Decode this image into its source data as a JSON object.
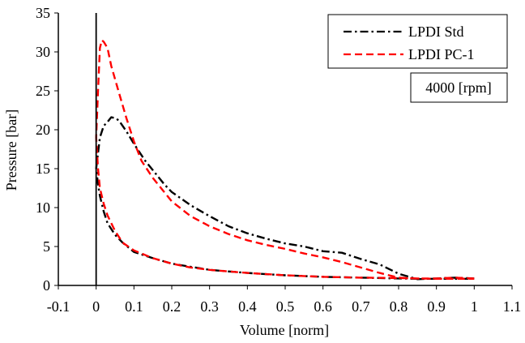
{
  "chart_data": {
    "type": "line",
    "title": "",
    "xlabel": "Volume [norm]",
    "ylabel": "Pressure [bar]",
    "xlim": [
      -0.1,
      1.1
    ],
    "ylim": [
      0,
      35
    ],
    "xticks": [
      -0.1,
      0,
      0.1,
      0.2,
      0.3,
      0.4,
      0.5,
      0.6,
      0.7,
      0.8,
      0.9,
      1,
      1.1
    ],
    "xtick_labels": [
      "-0.1",
      "0",
      "0.1",
      "0.2",
      "0.3",
      "0.4",
      "0.5",
      "0.6",
      "0.7",
      "0.8",
      "0.9",
      "1",
      "1.1"
    ],
    "yticks": [
      0,
      5,
      10,
      15,
      20,
      25,
      30,
      35
    ],
    "ytick_labels": [
      "0",
      "5",
      "10",
      "15",
      "20",
      "25",
      "30",
      "35"
    ],
    "grid": false,
    "legend_position": "top-right",
    "annotation": "4000 [rpm]",
    "series": [
      {
        "name": "LPDI Std",
        "color": "#000000",
        "dash": "dash-dot",
        "x": [
          1.0,
          0.95,
          0.9,
          0.85,
          0.8,
          0.75,
          0.7,
          0.65,
          0.6,
          0.55,
          0.5,
          0.45,
          0.4,
          0.35,
          0.3,
          0.25,
          0.2,
          0.18,
          0.15,
          0.13,
          0.1,
          0.08,
          0.06,
          0.05,
          0.04,
          0.03,
          0.02,
          0.01,
          0.005,
          0.0,
          0.005,
          0.01,
          0.02,
          0.03,
          0.05,
          0.07,
          0.1,
          0.15,
          0.2,
          0.25,
          0.3,
          0.4,
          0.5,
          0.6,
          0.7,
          0.8,
          0.85,
          0.9,
          1.0
        ],
        "y": [
          0.9,
          1.0,
          0.9,
          0.8,
          1.5,
          2.7,
          3.4,
          4.2,
          4.4,
          5.0,
          5.4,
          6.0,
          6.7,
          7.6,
          8.9,
          10.3,
          12.0,
          13.0,
          14.8,
          16.0,
          18.2,
          19.8,
          21.2,
          21.5,
          21.6,
          21.0,
          20.5,
          19.0,
          17.0,
          15.0,
          13.0,
          11.5,
          9.5,
          8.0,
          6.5,
          5.5,
          4.3,
          3.5,
          2.8,
          2.4,
          2.0,
          1.6,
          1.3,
          1.1,
          1.0,
          0.9,
          0.85,
          0.85,
          0.85
        ]
      },
      {
        "name": "LPDI PC-1",
        "color": "#ff0000",
        "dash": "dashed",
        "x": [
          1.0,
          0.95,
          0.9,
          0.85,
          0.8,
          0.75,
          0.7,
          0.65,
          0.6,
          0.55,
          0.5,
          0.45,
          0.4,
          0.35,
          0.3,
          0.25,
          0.2,
          0.15,
          0.12,
          0.1,
          0.08,
          0.06,
          0.04,
          0.03,
          0.02,
          0.015,
          0.01,
          0.005,
          0.0,
          0.005,
          0.01,
          0.02,
          0.03,
          0.05,
          0.07,
          0.1,
          0.15,
          0.2,
          0.25,
          0.3,
          0.4,
          0.5,
          0.6,
          0.7,
          0.8,
          0.85,
          0.9,
          1.0
        ],
        "y": [
          0.9,
          1.0,
          0.9,
          0.9,
          1.0,
          1.6,
          2.3,
          3.0,
          3.6,
          4.1,
          4.7,
          5.2,
          5.8,
          6.6,
          7.6,
          8.9,
          10.8,
          13.8,
          16.0,
          18.5,
          21.5,
          24.8,
          28.2,
          30.5,
          31.3,
          31.5,
          30.5,
          25.0,
          19.0,
          15.0,
          12.5,
          10.5,
          9.0,
          7.0,
          5.5,
          4.5,
          3.5,
          2.8,
          2.3,
          2.0,
          1.6,
          1.3,
          1.1,
          1.0,
          0.95,
          0.9,
          0.85,
          0.85
        ]
      }
    ]
  }
}
